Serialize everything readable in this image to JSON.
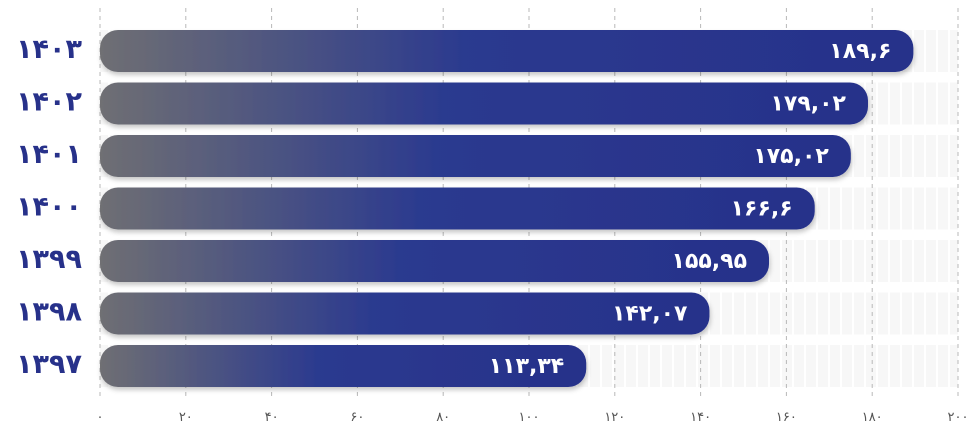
{
  "chart_data": {
    "type": "bar",
    "orientation": "horizontal",
    "title": "",
    "xlabel": "",
    "ylabel": "",
    "xlim": [
      0,
      200
    ],
    "grid": true,
    "categories": [
      "۱۴۰۳",
      "۱۴۰۲",
      "۱۴۰۱",
      "۱۴۰۰",
      "۱۳۹۹",
      "۱۳۹۸",
      "۱۳۹۷"
    ],
    "values": [
      189.6,
      179.02,
      175.02,
      166.6,
      155.95,
      142.07,
      113.34
    ],
    "value_labels": [
      "۱۸۹,۶",
      "۱۷۹,۰۲",
      "۱۷۵,۰۲",
      "۱۶۶,۶",
      "۱۵۵,۹۵",
      "۱۴۲,۰۷",
      "۱۱۳,۳۴"
    ],
    "ticks": [
      {
        "value": 0,
        "label": "۰"
      },
      {
        "value": 20,
        "label": "۲۰"
      },
      {
        "value": 40,
        "label": "۴۰"
      },
      {
        "value": 60,
        "label": "۶۰"
      },
      {
        "value": 80,
        "label": "۸۰"
      },
      {
        "value": 100,
        "label": "۱۰۰"
      },
      {
        "value": 120,
        "label": "۱۲۰"
      },
      {
        "value": 140,
        "label": "۱۴۰"
      },
      {
        "value": 160,
        "label": "۱۶۰"
      },
      {
        "value": 180,
        "label": "۱۸۰"
      },
      {
        "value": 200,
        "label": "۲۰۰"
      }
    ],
    "colors": {
      "bar_start": "#6f6f73",
      "bar_end": "#27318a",
      "label_text": "#ffffff",
      "category_text": "#27318a",
      "tick_text": "#555555",
      "grid": "#b8b8b8",
      "track": "#eeeeee"
    }
  }
}
